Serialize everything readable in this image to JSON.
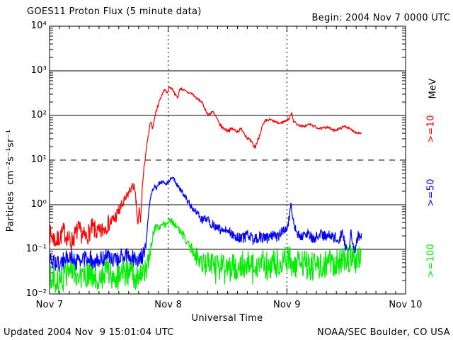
{
  "title": "GOES11 Proton Flux (5 minute data)",
  "begin_label": "Begin: 2004 Nov 7 0000 UTC",
  "footer": {
    "updated": "Updated 2004 Nov  9 15:01:04 UTC",
    "source": "NOAA/SEC Boulder, CO USA"
  },
  "axes": {
    "x_label": "Universal Time",
    "y_label": "Particles  cm⁻²s⁻¹sr⁻¹",
    "x_tick_labels": [
      "Nov 7",
      "Nov 8",
      "Nov 9",
      "Nov 10"
    ],
    "y_tick_labels": [
      "10⁴",
      "10³",
      "10²",
      "10¹",
      "10⁰",
      "10⁻¹",
      "10⁻²"
    ]
  },
  "right_labels": {
    "units": "MeV",
    "series": [
      ">=10",
      ">=50",
      ">=100"
    ]
  },
  "colors": {
    "gte10": "#ff0000",
    "gte50": "#0000ff",
    "gte100": "#00ee00",
    "axis": "#000000"
  },
  "chart_data": {
    "type": "line",
    "title": "GOES11 Proton Flux (5 minute data)",
    "xlabel": "Universal Time",
    "ylabel": "Particles cm-2 s-1 sr-1",
    "x_unit": "days since 2004 Nov 7 0000 UTC",
    "x_range_days": [
      0,
      3
    ],
    "y_log_range": [
      -2,
      4
    ],
    "grid_solid_decades": [
      3,
      2,
      0,
      -1
    ],
    "grid_dashed_decades": [
      1
    ],
    "vertical_dotted_days": [
      1,
      2
    ],
    "minor_x_tick_hours": 2,
    "data_end_day": 2.63,
    "noise_seed": 7,
    "series": [
      {
        "name": ">=10 MeV",
        "color_key": "gte10",
        "points": [
          [
            0.0,
            0.22,
            0.22
          ],
          [
            0.06,
            0.15,
            0.22
          ],
          [
            0.12,
            0.25,
            0.22
          ],
          [
            0.18,
            0.14,
            0.22
          ],
          [
            0.24,
            0.28,
            0.22
          ],
          [
            0.3,
            0.18,
            0.22
          ],
          [
            0.36,
            0.3,
            0.22
          ],
          [
            0.42,
            0.22,
            0.22
          ],
          [
            0.48,
            0.35,
            0.2
          ],
          [
            0.54,
            0.45,
            0.18
          ],
          [
            0.6,
            0.85,
            0.15
          ],
          [
            0.64,
            1.3,
            0.12
          ],
          [
            0.68,
            2.2,
            0.1
          ],
          [
            0.71,
            2.7,
            0.1
          ],
          [
            0.73,
            1.1,
            0.12
          ],
          [
            0.745,
            0.32,
            0.1
          ],
          [
            0.755,
            0.85,
            0.08
          ],
          [
            0.768,
            0.4,
            0.08
          ],
          [
            0.78,
            2.2,
            0.06
          ],
          [
            0.795,
            6,
            0.05
          ],
          [
            0.81,
            14,
            0.05
          ],
          [
            0.83,
            32,
            0.04
          ],
          [
            0.85,
            70,
            0.04
          ],
          [
            0.87,
            52,
            0.04
          ],
          [
            0.89,
            105,
            0.04
          ],
          [
            0.91,
            155,
            0.04
          ],
          [
            0.93,
            230,
            0.03
          ],
          [
            0.95,
            300,
            0.03
          ],
          [
            0.97,
            390,
            0.03
          ],
          [
            0.99,
            310,
            0.03
          ],
          [
            1.01,
            440,
            0.03
          ],
          [
            1.04,
            380,
            0.03
          ],
          [
            1.06,
            290,
            0.03
          ],
          [
            1.08,
            250,
            0.03
          ],
          [
            1.1,
            410,
            0.03
          ],
          [
            1.13,
            370,
            0.03
          ],
          [
            1.16,
            330,
            0.03
          ],
          [
            1.2,
            310,
            0.03
          ],
          [
            1.24,
            240,
            0.03
          ],
          [
            1.28,
            205,
            0.03
          ],
          [
            1.31,
            140,
            0.03
          ],
          [
            1.34,
            100,
            0.04
          ],
          [
            1.37,
            125,
            0.04
          ],
          [
            1.4,
            95,
            0.04
          ],
          [
            1.43,
            65,
            0.04
          ],
          [
            1.46,
            52,
            0.04
          ],
          [
            1.5,
            46,
            0.04
          ],
          [
            1.54,
            50,
            0.04
          ],
          [
            1.58,
            44,
            0.04
          ],
          [
            1.62,
            50,
            0.04
          ],
          [
            1.66,
            33,
            0.04
          ],
          [
            1.7,
            25,
            0.05
          ],
          [
            1.73,
            19,
            0.05
          ],
          [
            1.76,
            30,
            0.05
          ],
          [
            1.79,
            55,
            0.04
          ],
          [
            1.82,
            75,
            0.04
          ],
          [
            1.86,
            80,
            0.03
          ],
          [
            1.9,
            72,
            0.03
          ],
          [
            1.94,
            66,
            0.03
          ],
          [
            1.98,
            74,
            0.03
          ],
          [
            2.02,
            85,
            0.03
          ],
          [
            2.04,
            118,
            0.02
          ],
          [
            2.055,
            75,
            0.03
          ],
          [
            2.09,
            62,
            0.03
          ],
          [
            2.14,
            56,
            0.03
          ],
          [
            2.19,
            64,
            0.03
          ],
          [
            2.24,
            55,
            0.03
          ],
          [
            2.29,
            50,
            0.03
          ],
          [
            2.34,
            56,
            0.03
          ],
          [
            2.39,
            46,
            0.03
          ],
          [
            2.44,
            50,
            0.03
          ],
          [
            2.49,
            58,
            0.03
          ],
          [
            2.54,
            48,
            0.03
          ],
          [
            2.58,
            42,
            0.03
          ],
          [
            2.63,
            40,
            0.03
          ]
        ]
      },
      {
        "name": ">=50 MeV",
        "color_key": "gte50",
        "points": [
          [
            0.0,
            0.06,
            0.2
          ],
          [
            0.08,
            0.045,
            0.2
          ],
          [
            0.16,
            0.07,
            0.2
          ],
          [
            0.24,
            0.05,
            0.2
          ],
          [
            0.32,
            0.065,
            0.2
          ],
          [
            0.4,
            0.05,
            0.2
          ],
          [
            0.48,
            0.07,
            0.2
          ],
          [
            0.56,
            0.055,
            0.2
          ],
          [
            0.64,
            0.075,
            0.2
          ],
          [
            0.72,
            0.06,
            0.2
          ],
          [
            0.78,
            0.07,
            0.18
          ],
          [
            0.8,
            0.09,
            0.15
          ],
          [
            0.815,
            0.16,
            0.12
          ],
          [
            0.83,
            0.55,
            0.08
          ],
          [
            0.845,
            1.2,
            0.06
          ],
          [
            0.86,
            1.8,
            0.05
          ],
          [
            0.88,
            2.6,
            0.05
          ],
          [
            0.9,
            2.3,
            0.05
          ],
          [
            0.92,
            3.0,
            0.04
          ],
          [
            0.95,
            3.3,
            0.04
          ],
          [
            0.98,
            2.9,
            0.04
          ],
          [
            1.01,
            3.5,
            0.04
          ],
          [
            1.04,
            4.1,
            0.04
          ],
          [
            1.06,
            3.3,
            0.05
          ],
          [
            1.09,
            2.4,
            0.05
          ],
          [
            1.12,
            1.9,
            0.06
          ],
          [
            1.15,
            1.4,
            0.06
          ],
          [
            1.18,
            1.05,
            0.07
          ],
          [
            1.21,
            0.8,
            0.08
          ],
          [
            1.25,
            0.6,
            0.08
          ],
          [
            1.29,
            0.45,
            0.09
          ],
          [
            1.33,
            0.5,
            0.09
          ],
          [
            1.36,
            0.38,
            0.1
          ],
          [
            1.4,
            0.32,
            0.1
          ],
          [
            1.44,
            0.27,
            0.1
          ],
          [
            1.48,
            0.3,
            0.1
          ],
          [
            1.52,
            0.24,
            0.11
          ],
          [
            1.57,
            0.2,
            0.11
          ],
          [
            1.62,
            0.17,
            0.12
          ],
          [
            1.67,
            0.21,
            0.12
          ],
          [
            1.72,
            0.16,
            0.12
          ],
          [
            1.77,
            0.19,
            0.12
          ],
          [
            1.82,
            0.17,
            0.12
          ],
          [
            1.87,
            0.21,
            0.12
          ],
          [
            1.92,
            0.19,
            0.12
          ],
          [
            1.97,
            0.26,
            0.11
          ],
          [
            2.01,
            0.35,
            0.1
          ],
          [
            2.035,
            1.05,
            0.05
          ],
          [
            2.05,
            0.45,
            0.08
          ],
          [
            2.08,
            0.24,
            0.11
          ],
          [
            2.13,
            0.19,
            0.12
          ],
          [
            2.18,
            0.22,
            0.12
          ],
          [
            2.23,
            0.17,
            0.12
          ],
          [
            2.28,
            0.23,
            0.12
          ],
          [
            2.33,
            0.19,
            0.12
          ],
          [
            2.38,
            0.21,
            0.12
          ],
          [
            2.43,
            0.16,
            0.13
          ],
          [
            2.47,
            0.24,
            0.12
          ],
          [
            2.51,
            0.07,
            0.15
          ],
          [
            2.54,
            0.22,
            0.12
          ],
          [
            2.57,
            0.09,
            0.14
          ],
          [
            2.6,
            0.2,
            0.12
          ],
          [
            2.63,
            0.21,
            0.12
          ]
        ]
      },
      {
        "name": ">=100 MeV",
        "color_key": "gte100",
        "points": [
          [
            0.0,
            0.025,
            0.3
          ],
          [
            0.08,
            0.018,
            0.3
          ],
          [
            0.16,
            0.03,
            0.3
          ],
          [
            0.24,
            0.02,
            0.3
          ],
          [
            0.32,
            0.028,
            0.3
          ],
          [
            0.4,
            0.02,
            0.3
          ],
          [
            0.48,
            0.03,
            0.3
          ],
          [
            0.56,
            0.022,
            0.3
          ],
          [
            0.64,
            0.03,
            0.3
          ],
          [
            0.72,
            0.024,
            0.3
          ],
          [
            0.8,
            0.028,
            0.28
          ],
          [
            0.83,
            0.05,
            0.2
          ],
          [
            0.85,
            0.1,
            0.15
          ],
          [
            0.87,
            0.2,
            0.1
          ],
          [
            0.89,
            0.3,
            0.08
          ],
          [
            0.91,
            0.33,
            0.08
          ],
          [
            0.93,
            0.28,
            0.08
          ],
          [
            0.95,
            0.4,
            0.07
          ],
          [
            0.98,
            0.34,
            0.07
          ],
          [
            1.01,
            0.44,
            0.07
          ],
          [
            1.04,
            0.4,
            0.08
          ],
          [
            1.07,
            0.32,
            0.09
          ],
          [
            1.1,
            0.25,
            0.1
          ],
          [
            1.13,
            0.19,
            0.12
          ],
          [
            1.16,
            0.14,
            0.14
          ],
          [
            1.19,
            0.11,
            0.16
          ],
          [
            1.22,
            0.085,
            0.18
          ],
          [
            1.25,
            0.065,
            0.22
          ],
          [
            1.28,
            0.05,
            0.26
          ],
          [
            1.32,
            0.042,
            0.3
          ],
          [
            1.36,
            0.05,
            0.32
          ],
          [
            1.4,
            0.035,
            0.34
          ],
          [
            1.45,
            0.045,
            0.34
          ],
          [
            1.5,
            0.03,
            0.35
          ],
          [
            1.55,
            0.045,
            0.35
          ],
          [
            1.6,
            0.035,
            0.35
          ],
          [
            1.65,
            0.05,
            0.35
          ],
          [
            1.7,
            0.035,
            0.35
          ],
          [
            1.75,
            0.045,
            0.35
          ],
          [
            1.8,
            0.05,
            0.34
          ],
          [
            1.85,
            0.035,
            0.35
          ],
          [
            1.9,
            0.055,
            0.34
          ],
          [
            1.95,
            0.04,
            0.35
          ],
          [
            2.0,
            0.065,
            0.33
          ],
          [
            2.05,
            0.05,
            0.34
          ],
          [
            2.1,
            0.04,
            0.35
          ],
          [
            2.15,
            0.055,
            0.34
          ],
          [
            2.2,
            0.035,
            0.35
          ],
          [
            2.25,
            0.05,
            0.34
          ],
          [
            2.3,
            0.04,
            0.35
          ],
          [
            2.35,
            0.055,
            0.34
          ],
          [
            2.4,
            0.04,
            0.35
          ],
          [
            2.45,
            0.06,
            0.33
          ],
          [
            2.5,
            0.05,
            0.34
          ],
          [
            2.55,
            0.07,
            0.33
          ],
          [
            2.6,
            0.05,
            0.34
          ],
          [
            2.63,
            0.055,
            0.33
          ]
        ]
      }
    ]
  }
}
